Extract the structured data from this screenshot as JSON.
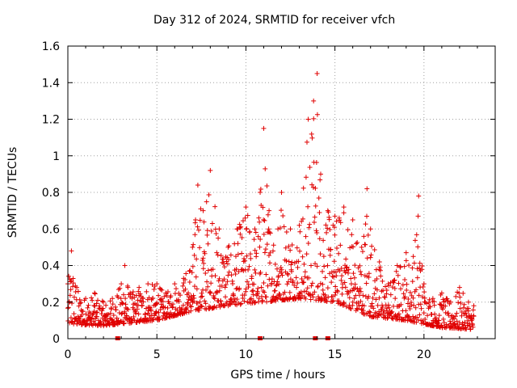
{
  "chart_data": {
    "type": "scatter",
    "title": "Day 312 of 2024, SRMTID for receiver vfch",
    "xlabel": "GPS time / hours",
    "ylabel": "SRMTID / TECUs",
    "xlim": [
      0,
      24
    ],
    "ylim": [
      0,
      1.6
    ],
    "x_ticks": [
      0,
      5,
      10,
      15,
      20
    ],
    "y_ticks": [
      0,
      0.2,
      0.4,
      0.6,
      0.8,
      1,
      1.2,
      1.4,
      1.6
    ],
    "x_tick_labels": [
      "0",
      "5",
      "10",
      "15",
      "20"
    ],
    "y_tick_labels": [
      "0",
      "0.2",
      "0.4",
      "0.6",
      "0.8",
      "1",
      "1.2",
      "1.4",
      "1.6"
    ],
    "grid": true,
    "marker": "+",
    "series_color": "#e00000",
    "envelope_note": "approximate upper envelope of the point cloud (hour, SRMTID)",
    "envelope": [
      [
        0.0,
        0.3
      ],
      [
        0.2,
        0.48
      ],
      [
        0.5,
        0.28
      ],
      [
        1.0,
        0.22
      ],
      [
        1.5,
        0.25
      ],
      [
        2.0,
        0.2
      ],
      [
        2.5,
        0.22
      ],
      [
        3.0,
        0.3
      ],
      [
        3.2,
        0.4
      ],
      [
        3.5,
        0.25
      ],
      [
        4.0,
        0.28
      ],
      [
        4.5,
        0.3
      ],
      [
        5.0,
        0.3
      ],
      [
        5.5,
        0.25
      ],
      [
        6.0,
        0.3
      ],
      [
        6.5,
        0.33
      ],
      [
        7.0,
        0.5
      ],
      [
        7.3,
        0.84
      ],
      [
        7.6,
        0.7
      ],
      [
        8.0,
        0.92
      ],
      [
        8.5,
        0.6
      ],
      [
        9.0,
        0.5
      ],
      [
        9.5,
        0.6
      ],
      [
        10.0,
        0.72
      ],
      [
        10.5,
        0.6
      ],
      [
        10.8,
        0.8
      ],
      [
        11.0,
        1.15
      ],
      [
        11.3,
        0.7
      ],
      [
        11.8,
        0.6
      ],
      [
        12.0,
        0.8
      ],
      [
        12.5,
        0.6
      ],
      [
        13.0,
        0.62
      ],
      [
        13.5,
        1.2
      ],
      [
        13.8,
        1.3
      ],
      [
        14.0,
        1.45
      ],
      [
        14.2,
        0.9
      ],
      [
        14.6,
        0.7
      ],
      [
        15.0,
        0.67
      ],
      [
        15.5,
        0.72
      ],
      [
        16.0,
        0.65
      ],
      [
        16.5,
        0.5
      ],
      [
        16.8,
        0.82
      ],
      [
        17.0,
        0.6
      ],
      [
        17.5,
        0.42
      ],
      [
        18.0,
        0.3
      ],
      [
        18.5,
        0.4
      ],
      [
        19.0,
        0.47
      ],
      [
        19.4,
        0.45
      ],
      [
        19.7,
        0.78
      ],
      [
        20.0,
        0.3
      ],
      [
        20.5,
        0.22
      ],
      [
        21.0,
        0.25
      ],
      [
        21.5,
        0.2
      ],
      [
        22.0,
        0.28
      ],
      [
        22.5,
        0.2
      ],
      [
        22.8,
        0.18
      ]
    ],
    "baseline_note": "approximate lower edge / typical level of the point cloud",
    "baseline": [
      [
        0.0,
        0.08
      ],
      [
        2.0,
        0.07
      ],
      [
        5.0,
        0.1
      ],
      [
        7.0,
        0.15
      ],
      [
        9.0,
        0.18
      ],
      [
        11.0,
        0.2
      ],
      [
        13.0,
        0.22
      ],
      [
        15.0,
        0.2
      ],
      [
        17.0,
        0.12
      ],
      [
        19.0,
        0.1
      ],
      [
        21.0,
        0.06
      ],
      [
        22.8,
        0.05
      ]
    ],
    "x_axis_markers_note": "small filled squares on the x axis (hours)",
    "x_axis_markers": [
      2.8,
      10.8,
      13.9,
      14.6
    ]
  }
}
